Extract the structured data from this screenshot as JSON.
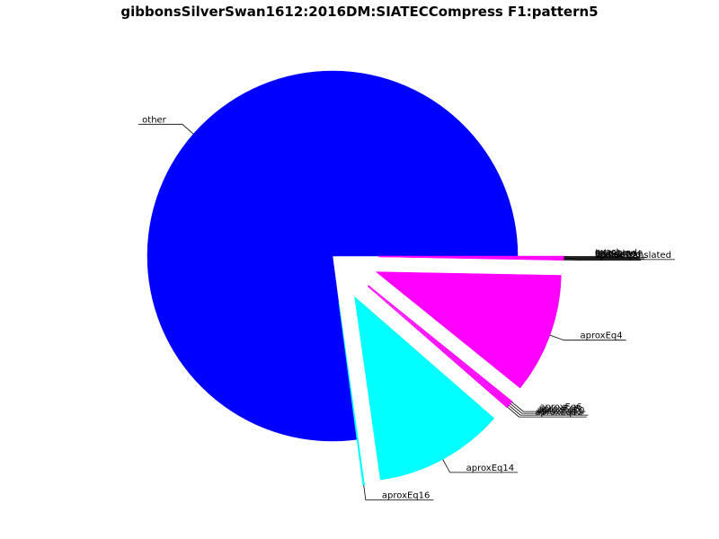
{
  "chart_data": {
    "type": "pie",
    "title": "gibbonsSilverSwan1612:2016DM:SIATECCompress F1:pattern5",
    "slices": [
      {
        "label": "other",
        "value": 77,
        "color": "#0000ff",
        "explode": 0
      },
      {
        "label": "aproxEq16",
        "value": 0.15,
        "color": "#00ffff",
        "explode": 0.25
      },
      {
        "label": "aproxEq14",
        "value": 11.35,
        "color": "#00ffff",
        "explode": 0.25
      },
      {
        "label": "aproxEq12",
        "value": 0.15,
        "color": "#ff00ff",
        "explode": 0.25
      },
      {
        "label": "aproxEq10",
        "value": 0.15,
        "color": "#ff00ff",
        "explode": 0.25
      },
      {
        "label": "aproxEq8",
        "value": 0.15,
        "color": "#ff00ff",
        "explode": 0.25
      },
      {
        "label": "aproxEq6",
        "value": 0.15,
        "color": "#ff00ff",
        "explode": 0.25
      },
      {
        "label": "aproxEq4",
        "value": 10.5,
        "color": "#ff00ff",
        "explode": 0.25
      },
      {
        "label": "aproxEq2",
        "value": 0.05,
        "color": "#ff00ff",
        "explode": 0.25
      },
      {
        "label": "sparseTranslated",
        "value": 0.05,
        "color": "#ff00ff",
        "explode": 0.25
      },
      {
        "label": "translated",
        "value": 0.05,
        "color": "#ff00ff",
        "explode": 0.25
      },
      {
        "label": "inversion",
        "value": 0.05,
        "color": "#ff00ff",
        "explode": 0.25
      },
      {
        "label": "retrograde",
        "value": 0.05,
        "color": "#ff00ff",
        "explode": 0.25
      },
      {
        "label": "exact",
        "value": 0.05,
        "color": "#ff00ff",
        "explode": 0.25
      }
    ]
  }
}
